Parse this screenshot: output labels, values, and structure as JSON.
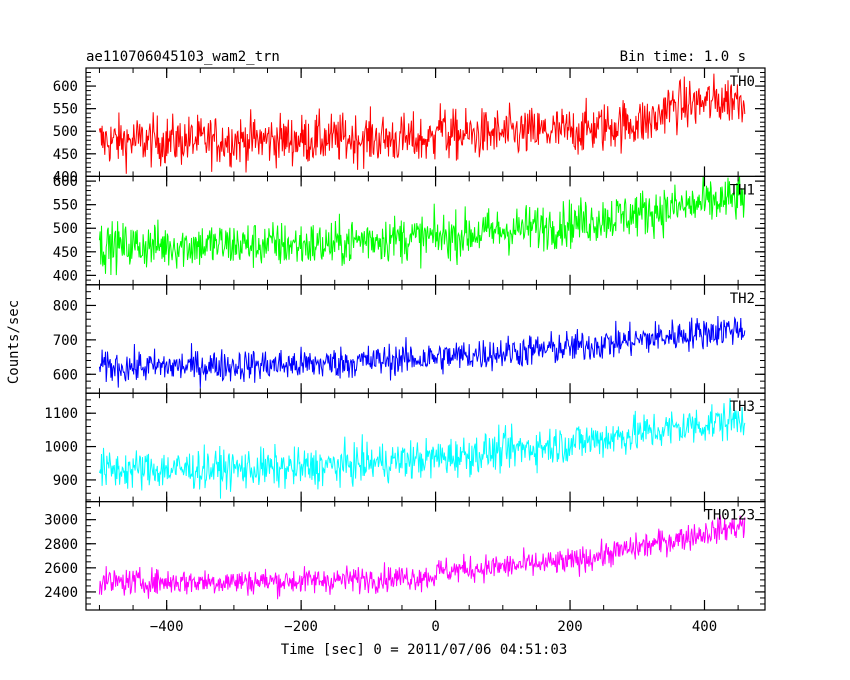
{
  "header": {
    "title": "ae110706045103_wam2_trn",
    "bin_time": "Bin time: 1.0 s"
  },
  "axes": {
    "xlabel": "Time [sec] 0 = 2011/07/06 04:51:03",
    "ylabel": "Counts/sec"
  },
  "chart_data": {
    "type": "line",
    "shared_x": true,
    "xlim": [
      -520,
      490
    ],
    "x_ticks": [
      -400,
      -200,
      0,
      200,
      400
    ],
    "x_tick_labels": [
      "−400",
      "−200",
      "0",
      "200",
      "400"
    ],
    "x_minor_step": 50,
    "data_range_x": [
      -500,
      460
    ],
    "bin_time_s": 1.0,
    "panels": [
      {
        "label": "TH0",
        "color": "#ff0000",
        "ylim": [
          400,
          640
        ],
        "y_ticks": [
          400,
          450,
          500,
          550,
          600
        ],
        "y_minor_step": 10,
        "trend": [
          [
            -500,
            478
          ],
          [
            -300,
            480
          ],
          [
            -100,
            484
          ],
          [
            -1,
            480
          ],
          [
            0,
            540
          ],
          [
            15,
            490
          ],
          [
            200,
            500
          ],
          [
            330,
            525
          ],
          [
            340,
            552
          ],
          [
            460,
            575
          ]
        ],
        "noise_sd": 28
      },
      {
        "label": "TH1",
        "color": "#00ff00",
        "ylim": [
          380,
          610
        ],
        "y_ticks": [
          400,
          450,
          500,
          550,
          600
        ],
        "y_minor_step": 10,
        "trend": [
          [
            -500,
            462
          ],
          [
            -300,
            465
          ],
          [
            -150,
            465
          ],
          [
            -100,
            478
          ],
          [
            0,
            480
          ],
          [
            200,
            510
          ],
          [
            460,
            565
          ]
        ],
        "noise_sd": 25
      },
      {
        "label": "TH2",
        "color": "#0000ff",
        "ylim": [
          545,
          860
        ],
        "y_ticks": [
          600,
          700,
          800
        ],
        "y_minor_step": 20,
        "trend": [
          [
            -500,
            620
          ],
          [
            -200,
            628
          ],
          [
            0,
            648
          ],
          [
            200,
            678
          ],
          [
            460,
            735
          ]
        ],
        "noise_sd": 24
      },
      {
        "label": "TH3",
        "color": "#00ffff",
        "ylim": [
          835,
          1160
        ],
        "y_ticks": [
          900,
          1000,
          1100
        ],
        "y_minor_step": 20,
        "trend": [
          [
            -500,
            930
          ],
          [
            -200,
            935
          ],
          [
            0,
            965
          ],
          [
            200,
            1010
          ],
          [
            460,
            1085
          ]
        ],
        "noise_sd": 30
      },
      {
        "label": "TH0123",
        "color": "#ff00ff",
        "ylim": [
          2250,
          3150
        ],
        "y_ticks": [
          2400,
          2600,
          2800,
          3000
        ],
        "y_minor_step": 50,
        "trend": [
          [
            -500,
            2480
          ],
          [
            -200,
            2490
          ],
          [
            -1,
            2530
          ],
          [
            0,
            2570
          ],
          [
            200,
            2650
          ],
          [
            460,
            2960
          ]
        ],
        "noise_sd": 55
      }
    ]
  }
}
